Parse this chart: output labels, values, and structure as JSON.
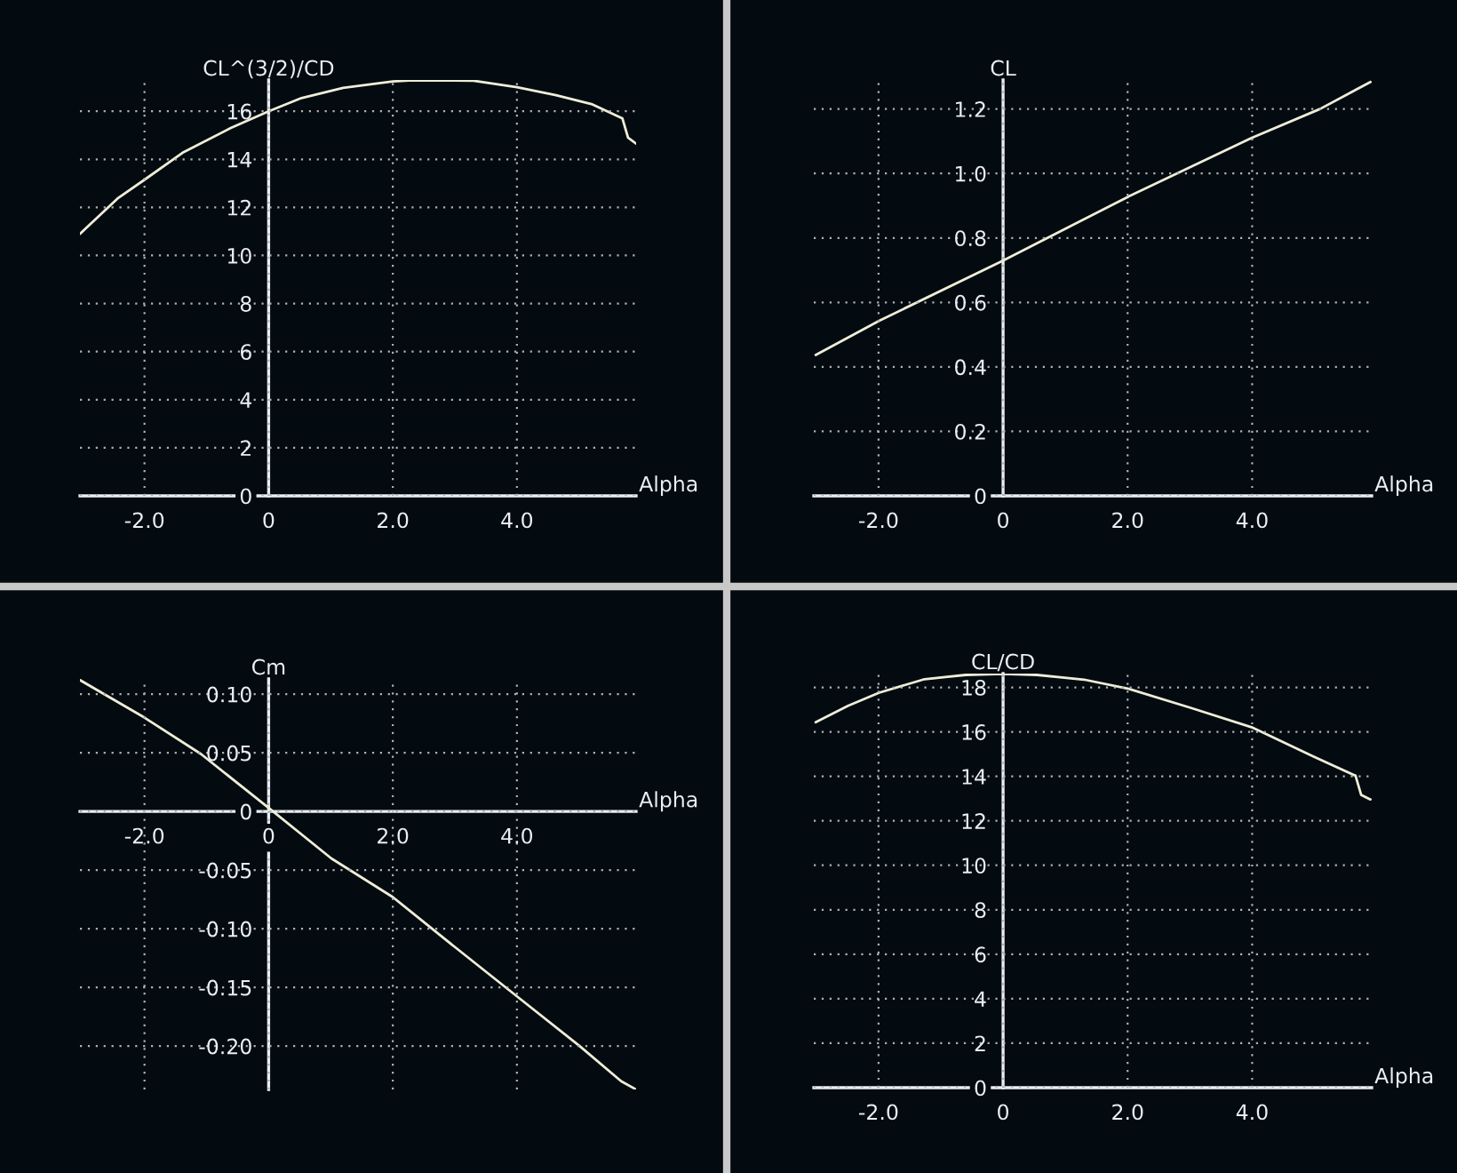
{
  "chart_data": [
    {
      "type": "line",
      "ylabel": "CL^(3/2)/CD",
      "xlabel": "Alpha",
      "grid": true,
      "marker": "none",
      "line_style": "solid",
      "x": [
        -3.04,
        -2.42,
        -2.0,
        -1.37,
        -0.61,
        0,
        0.53,
        1.2,
        2.0,
        2.34,
        3.3,
        4.0,
        4.63,
        5.2,
        5.7,
        5.79,
        5.92
      ],
      "series": [
        {
          "color": "#eeeed8",
          "values": [
            10.9,
            12.4,
            13.15,
            14.3,
            15.3,
            16.0,
            16.55,
            16.97,
            17.24,
            17.29,
            17.27,
            17.0,
            16.67,
            16.3,
            15.7,
            14.9,
            14.65
          ]
        }
      ],
      "xlim": [
        -3.04,
        5.92
      ],
      "ylim": [
        0,
        17.3
      ],
      "xticks": [
        {
          "value": -2,
          "label": "-2.0"
        },
        0,
        {
          "value": 2,
          "label": "2.0"
        },
        {
          "value": 4,
          "label": "4.0"
        }
      ],
      "yticks": [
        0,
        2,
        4,
        6,
        8,
        10,
        12,
        14,
        16
      ]
    },
    {
      "type": "line",
      "ylabel": "CL",
      "xlabel": "Alpha",
      "grid": true,
      "marker": "none",
      "line_style": "solid",
      "x": [
        -3.01,
        -1.99,
        0,
        2.0,
        3.99,
        5.09,
        5.9
      ],
      "series": [
        {
          "color": "#eeeed8",
          "values": [
            0.437,
            0.543,
            0.73,
            0.927,
            1.11,
            1.2,
            1.284
          ]
        }
      ],
      "xlim": [
        -3.04,
        5.92
      ],
      "ylim": [
        0,
        1.29
      ],
      "xticks": [
        {
          "value": -2,
          "label": "-2.0"
        },
        0,
        {
          "value": 2,
          "label": "2.0"
        },
        {
          "value": 4,
          "label": "4.0"
        }
      ],
      "yticks": [
        0,
        {
          "value": 0.2,
          "label": "0.2"
        },
        {
          "value": 0.4,
          "label": "0.4"
        },
        {
          "value": 0.6,
          "label": "0.6"
        },
        {
          "value": 0.8,
          "label": "0.8"
        },
        {
          "value": 1.0,
          "label": "1.0"
        },
        {
          "value": 1.2,
          "label": "1.2"
        }
      ]
    },
    {
      "type": "line",
      "ylabel": "Cm",
      "xlabel": "Alpha",
      "grid": true,
      "marker": "none",
      "line_style": "solid",
      "x": [
        -3.04,
        -2.0,
        -1.09,
        0,
        1.01,
        2.0,
        3.01,
        4.01,
        5.01,
        5.68,
        5.92
      ],
      "series": [
        {
          "color": "#eeeed8",
          "values": [
            0.112,
            0.08,
            0.049,
            0.003,
            -0.04,
            -0.073,
            -0.116,
            -0.158,
            -0.2,
            -0.23,
            -0.237
          ]
        }
      ],
      "xlim": [
        -3.04,
        5.92
      ],
      "ylim": [
        -0.237,
        0.113
      ],
      "xticks": [
        {
          "value": -2,
          "label": "-2.0"
        },
        0,
        {
          "value": 2,
          "label": "2.0"
        },
        {
          "value": 4,
          "label": "4.0"
        }
      ],
      "yticks": [
        {
          "value": -0.2,
          "label": "-0.20"
        },
        {
          "value": -0.15,
          "label": "-0.15"
        },
        {
          "value": -0.1,
          "label": "-0.10"
        },
        {
          "value": -0.05,
          "label": "-0.05"
        },
        0,
        {
          "value": 0.05,
          "label": "0.05"
        },
        {
          "value": 0.1,
          "label": "0.10"
        }
      ]
    },
    {
      "type": "line",
      "ylabel": "CL/CD",
      "xlabel": "Alpha",
      "grid": true,
      "marker": "none",
      "line_style": "solid",
      "x": [
        -3.01,
        -2.49,
        -1.99,
        -1.26,
        -0.6,
        0,
        0.54,
        1.3,
        2.0,
        3.0,
        3.99,
        4.99,
        5.66,
        5.75,
        5.9
      ],
      "series": [
        {
          "color": "#eeeed8",
          "values": [
            16.43,
            17.17,
            17.76,
            18.37,
            18.56,
            18.61,
            18.56,
            18.35,
            17.95,
            17.09,
            16.21,
            14.88,
            14.03,
            13.17,
            12.96
          ]
        }
      ],
      "xlim": [
        -3.04,
        5.92
      ],
      "ylim": [
        0,
        18.62
      ],
      "xticks": [
        {
          "value": -2,
          "label": "-2.0"
        },
        0,
        {
          "value": 2,
          "label": "2.0"
        },
        {
          "value": 4,
          "label": "4.0"
        }
      ],
      "yticks": [
        0,
        2,
        4,
        6,
        8,
        10,
        12,
        14,
        16,
        18
      ]
    }
  ]
}
